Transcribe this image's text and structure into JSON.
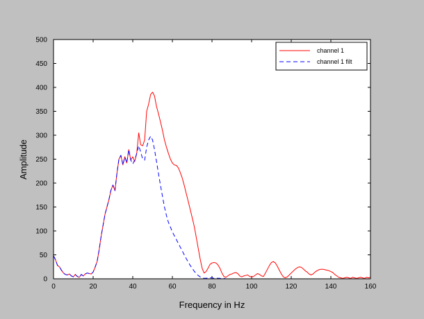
{
  "chart_data": {
    "type": "line",
    "xlabel": "Frequency in Hz",
    "ylabel": "Amplitude",
    "xlim": [
      0,
      160
    ],
    "ylim": [
      0,
      500
    ],
    "xticks": [
      0,
      20,
      40,
      60,
      80,
      100,
      120,
      140,
      160
    ],
    "yticks": [
      0,
      50,
      100,
      150,
      200,
      250,
      300,
      350,
      400,
      450,
      500
    ],
    "grid": false,
    "legend_position": "top-right",
    "series": [
      {
        "name": "channel 1",
        "color": "#ff0000",
        "dash": "solid",
        "points": [
          [
            0,
            48
          ],
          [
            1,
            40
          ],
          [
            2,
            28
          ],
          [
            3,
            25
          ],
          [
            4,
            18
          ],
          [
            5,
            12
          ],
          [
            6,
            9
          ],
          [
            7,
            8
          ],
          [
            8,
            10
          ],
          [
            9,
            6
          ],
          [
            10,
            4
          ],
          [
            11,
            9
          ],
          [
            12,
            5
          ],
          [
            13,
            3
          ],
          [
            14,
            9
          ],
          [
            15,
            6
          ],
          [
            16,
            10
          ],
          [
            17,
            12
          ],
          [
            18,
            11
          ],
          [
            19,
            10
          ],
          [
            20,
            14
          ],
          [
            21,
            24
          ],
          [
            22,
            36
          ],
          [
            23,
            60
          ],
          [
            24,
            88
          ],
          [
            25,
            112
          ],
          [
            26,
            135
          ],
          [
            27,
            150
          ],
          [
            28,
            166
          ],
          [
            29,
            185
          ],
          [
            30,
            196
          ],
          [
            31,
            184
          ],
          [
            32,
            220
          ],
          [
            33,
            250
          ],
          [
            34,
            258
          ],
          [
            35,
            238
          ],
          [
            36,
            255
          ],
          [
            37,
            242
          ],
          [
            38,
            270
          ],
          [
            39,
            248
          ],
          [
            40,
            255
          ],
          [
            41,
            245
          ],
          [
            42,
            262
          ],
          [
            43,
            305
          ],
          [
            44,
            280
          ],
          [
            45,
            278
          ],
          [
            46,
            290
          ],
          [
            47,
            350
          ],
          [
            48,
            365
          ],
          [
            49,
            385
          ],
          [
            50,
            390
          ],
          [
            51,
            382
          ],
          [
            52,
            360
          ],
          [
            53,
            345
          ],
          [
            54,
            328
          ],
          [
            55,
            310
          ],
          [
            56,
            290
          ],
          [
            57,
            275
          ],
          [
            58,
            262
          ],
          [
            59,
            250
          ],
          [
            60,
            242
          ],
          [
            61,
            238
          ],
          [
            62,
            237
          ],
          [
            63,
            232
          ],
          [
            64,
            222
          ],
          [
            65,
            210
          ],
          [
            66,
            195
          ],
          [
            67,
            178
          ],
          [
            68,
            162
          ],
          [
            69,
            145
          ],
          [
            70,
            128
          ],
          [
            71,
            110
          ],
          [
            72,
            88
          ],
          [
            73,
            65
          ],
          [
            74,
            42
          ],
          [
            75,
            22
          ],
          [
            76,
            12
          ],
          [
            77,
            15
          ],
          [
            78,
            22
          ],
          [
            79,
            30
          ],
          [
            80,
            33
          ],
          [
            81,
            34
          ],
          [
            82,
            33
          ],
          [
            83,
            29
          ],
          [
            84,
            22
          ],
          [
            85,
            12
          ],
          [
            86,
            5
          ],
          [
            87,
            3
          ],
          [
            88,
            6
          ],
          [
            89,
            9
          ],
          [
            90,
            10
          ],
          [
            91,
            12
          ],
          [
            92,
            13
          ],
          [
            93,
            11
          ],
          [
            94,
            6
          ],
          [
            95,
            4
          ],
          [
            96,
            6
          ],
          [
            97,
            7
          ],
          [
            98,
            8
          ],
          [
            99,
            5
          ],
          [
            100,
            4
          ],
          [
            101,
            5
          ],
          [
            102,
            8
          ],
          [
            103,
            11
          ],
          [
            104,
            9
          ],
          [
            105,
            6
          ],
          [
            106,
            5
          ],
          [
            107,
            12
          ],
          [
            108,
            20
          ],
          [
            109,
            28
          ],
          [
            110,
            34
          ],
          [
            111,
            36
          ],
          [
            112,
            33
          ],
          [
            113,
            26
          ],
          [
            114,
            18
          ],
          [
            115,
            10
          ],
          [
            116,
            4
          ],
          [
            117,
            2
          ],
          [
            118,
            4
          ],
          [
            119,
            8
          ],
          [
            120,
            12
          ],
          [
            121,
            16
          ],
          [
            122,
            20
          ],
          [
            123,
            23
          ],
          [
            124,
            25
          ],
          [
            125,
            24
          ],
          [
            126,
            21
          ],
          [
            127,
            17
          ],
          [
            128,
            14
          ],
          [
            129,
            10
          ],
          [
            130,
            8
          ],
          [
            131,
            10
          ],
          [
            132,
            14
          ],
          [
            133,
            17
          ],
          [
            134,
            19
          ],
          [
            135,
            20
          ],
          [
            136,
            20
          ],
          [
            137,
            19
          ],
          [
            138,
            18
          ],
          [
            139,
            17
          ],
          [
            140,
            15
          ],
          [
            141,
            13
          ],
          [
            142,
            9
          ],
          [
            143,
            6
          ],
          [
            144,
            3
          ],
          [
            145,
            2
          ],
          [
            146,
            1
          ],
          [
            147,
            2
          ],
          [
            148,
            3
          ],
          [
            149,
            2
          ],
          [
            150,
            1
          ],
          [
            151,
            3
          ],
          [
            152,
            2
          ],
          [
            153,
            1
          ],
          [
            154,
            2
          ],
          [
            155,
            3
          ],
          [
            156,
            2
          ],
          [
            157,
            1
          ],
          [
            158,
            3
          ],
          [
            159,
            2
          ],
          [
            160,
            3
          ]
        ]
      },
      {
        "name": "channel 1 filt",
        "color": "#0000ff",
        "dash": "dashed",
        "points": [
          [
            0,
            48
          ],
          [
            1,
            40
          ],
          [
            2,
            28
          ],
          [
            3,
            25
          ],
          [
            4,
            18
          ],
          [
            5,
            12
          ],
          [
            6,
            9
          ],
          [
            7,
            8
          ],
          [
            8,
            10
          ],
          [
            9,
            6
          ],
          [
            10,
            4
          ],
          [
            11,
            9
          ],
          [
            12,
            5
          ],
          [
            13,
            3
          ],
          [
            14,
            9
          ],
          [
            15,
            6
          ],
          [
            16,
            10
          ],
          [
            17,
            12
          ],
          [
            18,
            11
          ],
          [
            19,
            10
          ],
          [
            20,
            14
          ],
          [
            21,
            24
          ],
          [
            22,
            36
          ],
          [
            23,
            60
          ],
          [
            24,
            88
          ],
          [
            25,
            112
          ],
          [
            26,
            135
          ],
          [
            27,
            150
          ],
          [
            28,
            166
          ],
          [
            29,
            185
          ],
          [
            30,
            196
          ],
          [
            31,
            184
          ],
          [
            32,
            220
          ],
          [
            33,
            250
          ],
          [
            34,
            258
          ],
          [
            35,
            238
          ],
          [
            36,
            255
          ],
          [
            37,
            242
          ],
          [
            38,
            270
          ],
          [
            39,
            248
          ],
          [
            40,
            240
          ],
          [
            41,
            248
          ],
          [
            42,
            262
          ],
          [
            43,
            278
          ],
          [
            44,
            265
          ],
          [
            45,
            250
          ],
          [
            46,
            248
          ],
          [
            47,
            275
          ],
          [
            48,
            290
          ],
          [
            49,
            298
          ],
          [
            50,
            290
          ],
          [
            51,
            270
          ],
          [
            52,
            245
          ],
          [
            53,
            220
          ],
          [
            54,
            195
          ],
          [
            55,
            172
          ],
          [
            56,
            150
          ],
          [
            57,
            132
          ],
          [
            58,
            118
          ],
          [
            59,
            108
          ],
          [
            60,
            98
          ],
          [
            61,
            90
          ],
          [
            62,
            82
          ],
          [
            63,
            74
          ],
          [
            64,
            66
          ],
          [
            65,
            58
          ],
          [
            66,
            50
          ],
          [
            67,
            42
          ],
          [
            68,
            35
          ],
          [
            69,
            28
          ],
          [
            70,
            22
          ],
          [
            71,
            16
          ],
          [
            72,
            11
          ],
          [
            73,
            7
          ],
          [
            74,
            4
          ],
          [
            75,
            2
          ],
          [
            76,
            1
          ],
          [
            77,
            1
          ],
          [
            78,
            2
          ],
          [
            79,
            2
          ],
          [
            80,
            2
          ],
          [
            81,
            1
          ],
          [
            82,
            2
          ],
          [
            83,
            1
          ],
          [
            84,
            1
          ],
          [
            85,
            0
          ],
          [
            86,
            1
          ],
          [
            87,
            0
          ],
          [
            88,
            0
          ],
          [
            89,
            0
          ],
          [
            90,
            0
          ]
        ]
      }
    ]
  }
}
